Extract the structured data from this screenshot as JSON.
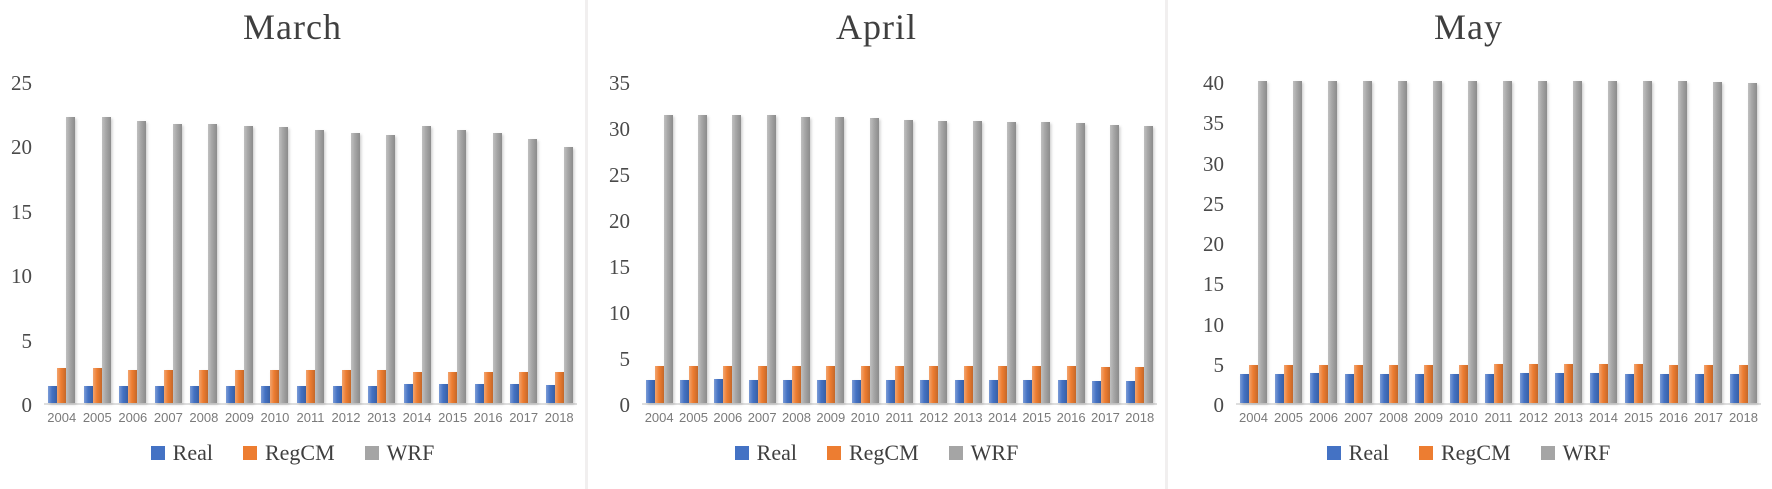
{
  "page": {
    "background": "#ffffff"
  },
  "colors": {
    "real": "#4472C4",
    "regcm": "#ED7D31",
    "wrf": "#A5A5A5",
    "title_text": "#3f3f3f",
    "axis_text": "#4a4a4a",
    "year_text": "#7a7a7a"
  },
  "chart_data": [
    {
      "type": "bar",
      "title": "March",
      "categories": [
        "2004",
        "2005",
        "2006",
        "2007",
        "2008",
        "2009",
        "2010",
        "2011",
        "2012",
        "2013",
        "2014",
        "2015",
        "2016",
        "2017",
        "2018"
      ],
      "series": [
        {
          "name": "Real",
          "color": "#4472C4",
          "values": [
            1.3,
            1.3,
            1.3,
            1.3,
            1.3,
            1.3,
            1.3,
            1.3,
            1.3,
            1.3,
            1.5,
            1.5,
            1.5,
            1.5,
            1.4
          ]
        },
        {
          "name": "RegCM",
          "color": "#ED7D31",
          "values": [
            2.7,
            2.7,
            2.6,
            2.6,
            2.6,
            2.6,
            2.6,
            2.6,
            2.6,
            2.6,
            2.4,
            2.4,
            2.4,
            2.4,
            2.4
          ]
        },
        {
          "name": "WRF",
          "color": "#A5A5A5",
          "values": [
            22.2,
            22.2,
            21.9,
            21.7,
            21.7,
            21.5,
            21.4,
            21.2,
            21.0,
            20.8,
            21.5,
            21.2,
            21.0,
            20.5,
            19.9
          ]
        }
      ],
      "xlabel": "",
      "ylabel": "",
      "ylim": [
        0,
        25
      ],
      "yticks": [
        0,
        5,
        10,
        15,
        20,
        25
      ],
      "grid": false,
      "legend_position": "bottom"
    },
    {
      "type": "bar",
      "title": "April",
      "categories": [
        "2004",
        "2005",
        "2006",
        "2007",
        "2008",
        "2009",
        "2010",
        "2011",
        "2012",
        "2013",
        "2014",
        "2015",
        "2016",
        "2017",
        "2018"
      ],
      "series": [
        {
          "name": "Real",
          "color": "#4472C4",
          "values": [
            2.5,
            2.5,
            2.6,
            2.5,
            2.5,
            2.5,
            2.5,
            2.5,
            2.5,
            2.5,
            2.5,
            2.5,
            2.5,
            2.4,
            2.4
          ]
        },
        {
          "name": "RegCM",
          "color": "#ED7D31",
          "values": [
            4.0,
            4.0,
            4.0,
            4.0,
            4.0,
            4.0,
            4.0,
            4.0,
            4.0,
            4.0,
            4.0,
            4.0,
            4.0,
            3.9,
            3.9
          ]
        },
        {
          "name": "WRF",
          "color": "#A5A5A5",
          "values": [
            31.3,
            31.3,
            31.3,
            31.3,
            31.1,
            31.1,
            31.0,
            30.8,
            30.7,
            30.6,
            30.5,
            30.5,
            30.4,
            30.2,
            30.1
          ]
        }
      ],
      "xlabel": "",
      "ylabel": "",
      "ylim": [
        0,
        35
      ],
      "yticks": [
        0,
        5,
        10,
        15,
        20,
        25,
        30,
        35
      ],
      "grid": false,
      "legend_position": "bottom"
    },
    {
      "type": "bar",
      "title": "May",
      "categories": [
        "2004",
        "2005",
        "2006",
        "2007",
        "2008",
        "2009",
        "2010",
        "2011",
        "2012",
        "2013",
        "2014",
        "2015",
        "2016",
        "2017",
        "2018"
      ],
      "series": [
        {
          "name": "Real",
          "color": "#4472C4",
          "values": [
            3.6,
            3.6,
            3.7,
            3.6,
            3.6,
            3.6,
            3.6,
            3.6,
            3.7,
            3.7,
            3.7,
            3.6,
            3.6,
            3.6,
            3.6
          ]
        },
        {
          "name": "RegCM",
          "color": "#ED7D31",
          "values": [
            4.7,
            4.7,
            4.7,
            4.7,
            4.7,
            4.7,
            4.7,
            4.8,
            4.8,
            4.8,
            4.8,
            4.8,
            4.7,
            4.7,
            4.7
          ]
        },
        {
          "name": "WRF",
          "color": "#A5A5A5",
          "values": [
            40.0,
            40.0,
            40.0,
            40.0,
            40.0,
            40.0,
            40.0,
            40.0,
            40.0,
            40.0,
            40.0,
            40.0,
            40.0,
            39.9,
            39.8
          ]
        }
      ],
      "xlabel": "",
      "ylabel": "",
      "ylim": [
        0,
        40
      ],
      "yticks": [
        0,
        5,
        10,
        15,
        20,
        25,
        30,
        35,
        40
      ],
      "grid": false,
      "legend_position": "bottom"
    }
  ]
}
